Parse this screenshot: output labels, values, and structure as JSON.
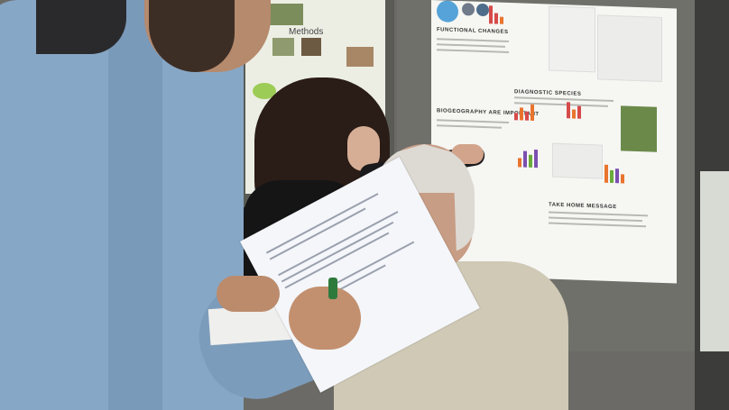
{
  "scene": {
    "description_visible": false,
    "poster_left": {
      "title": "Methods"
    },
    "poster_main": {
      "headings": [
        "FUNCTIONAL CHANGES",
        "DIAGNOSTIC SPECIES",
        "BIOGEOGRAPHY ARE IMPORTANT",
        "TAKE HOME MESSAGE"
      ]
    },
    "colors": {
      "shirt_blue": "#87a7c6",
      "poster_bg": "#f6f6f3",
      "bar_orange": "#e9742e",
      "bar_purple": "#7b4fb0",
      "bar_green": "#6aab3a",
      "bar_red": "#d64a4a"
    }
  }
}
